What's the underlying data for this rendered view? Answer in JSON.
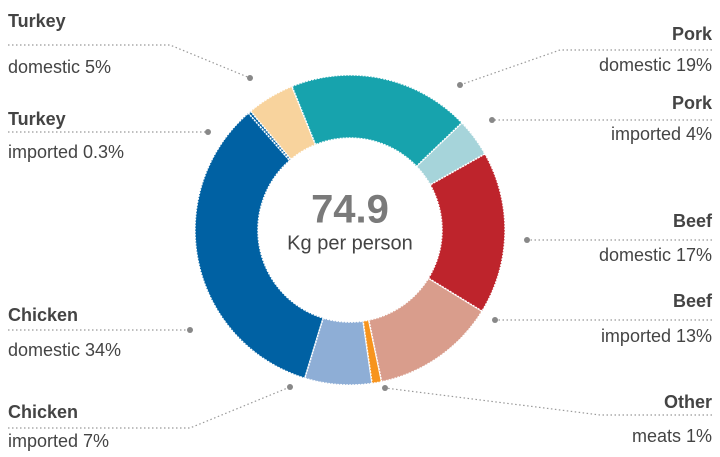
{
  "chart_data": {
    "type": "pie",
    "categories": [
      "Pork",
      "Pork",
      "Beef",
      "Beef",
      "Other",
      "Chicken",
      "Chicken",
      "Turkey",
      "Turkey"
    ],
    "subcategories": [
      "domestic",
      "imported",
      "domestic",
      "imported",
      "meats",
      "imported",
      "domestic",
      "imported",
      "domestic"
    ],
    "values": [
      19,
      4,
      17,
      13,
      1,
      7,
      34,
      0.3,
      5
    ],
    "value_labels": [
      "19%",
      "4%",
      "17%",
      "13%",
      "1%",
      "7%",
      "34%",
      "0.3%",
      "5%"
    ],
    "colors": [
      "#17a3ad",
      "#a6d4da",
      "#be242c",
      "#d99d8c",
      "#f7941d",
      "#8eaed6",
      "#0061a3",
      "#0061a3",
      "#f8d39d"
    ],
    "center_value": "74.9",
    "center_label": "Kg per person"
  }
}
